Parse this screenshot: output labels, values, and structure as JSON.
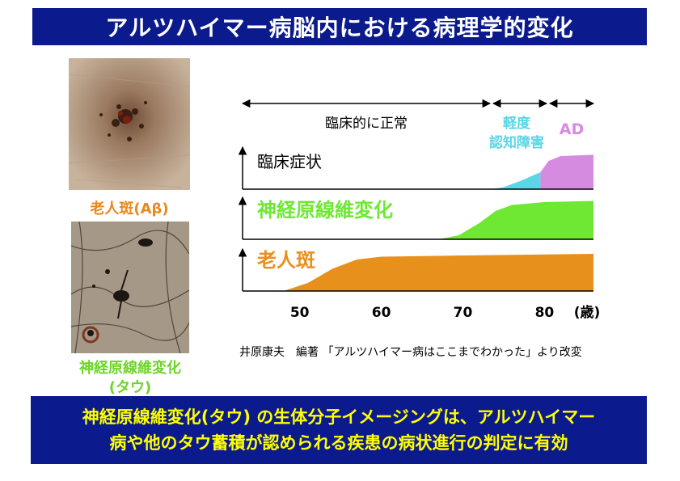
{
  "title": "アルツハイマー病脳内における病理学的変化",
  "images": [
    {
      "caption": "老人斑(Aβ)",
      "caption_color": "#e8891c",
      "subject": "plaque"
    },
    {
      "caption_line1": "神経原線維変化",
      "caption_line2": "(タウ)",
      "caption_color": "#6dd42a",
      "subject": "tangle"
    }
  ],
  "phases": [
    {
      "label": "臨床的に正常",
      "color": "#000000"
    },
    {
      "label_line1": "軽度",
      "label_line2": "認知障害",
      "color": "#5ad6e8"
    },
    {
      "label": "AD",
      "color": "#d58be0"
    }
  ],
  "rows": [
    {
      "label": "臨床症状",
      "color": "#000000"
    },
    {
      "label": "神経原線維変化",
      "color": "#6ee833"
    },
    {
      "label": "老人斑",
      "color": "#e8901c"
    }
  ],
  "chart_data": {
    "type": "area",
    "x_ticks": [
      50,
      60,
      70,
      80
    ],
    "x_unit": "(歳)",
    "xlim": [
      43,
      86
    ],
    "series": [
      {
        "name": "臨床症状",
        "segments": [
          {
            "color": "#5ad6e8",
            "points": [
              [
                73.5,
                0
              ],
              [
                75,
                0.05
              ],
              [
                77,
                0.2
              ],
              [
                79.5,
                0.42
              ]
            ]
          },
          {
            "color": "#d58be0",
            "points": [
              [
                79.5,
                0.42
              ],
              [
                80.5,
                0.7
              ],
              [
                82,
                0.82
              ],
              [
                86,
                0.85
              ]
            ]
          }
        ]
      },
      {
        "name": "神経原線維変化",
        "segments": [
          {
            "color": "#6ee833",
            "points": [
              [
                67,
                0
              ],
              [
                69.5,
                0.1
              ],
              [
                72,
                0.4
              ],
              [
                74,
                0.7
              ],
              [
                76,
                0.85
              ],
              [
                80,
                0.92
              ],
              [
                86,
                0.95
              ]
            ]
          }
        ]
      },
      {
        "name": "老人斑",
        "segments": [
          {
            "color": "#e8901c",
            "points": [
              [
                48,
                0
              ],
              [
                51,
                0.2
              ],
              [
                54,
                0.55
              ],
              [
                57,
                0.78
              ],
              [
                60,
                0.85
              ],
              [
                70,
                0.88
              ],
              [
                86,
                0.92
              ]
            ]
          }
        ]
      }
    ]
  },
  "source": "井原康夫　編著 「アルツハイマー病はここまでわかった」より改変",
  "bottom": {
    "line1": "神経原線維変化(タウ) の生体分子イメージングは、アルツハイマー",
    "line2": "病や他のタウ蓄積が認められる疾患の病状進行の判定に有効"
  }
}
